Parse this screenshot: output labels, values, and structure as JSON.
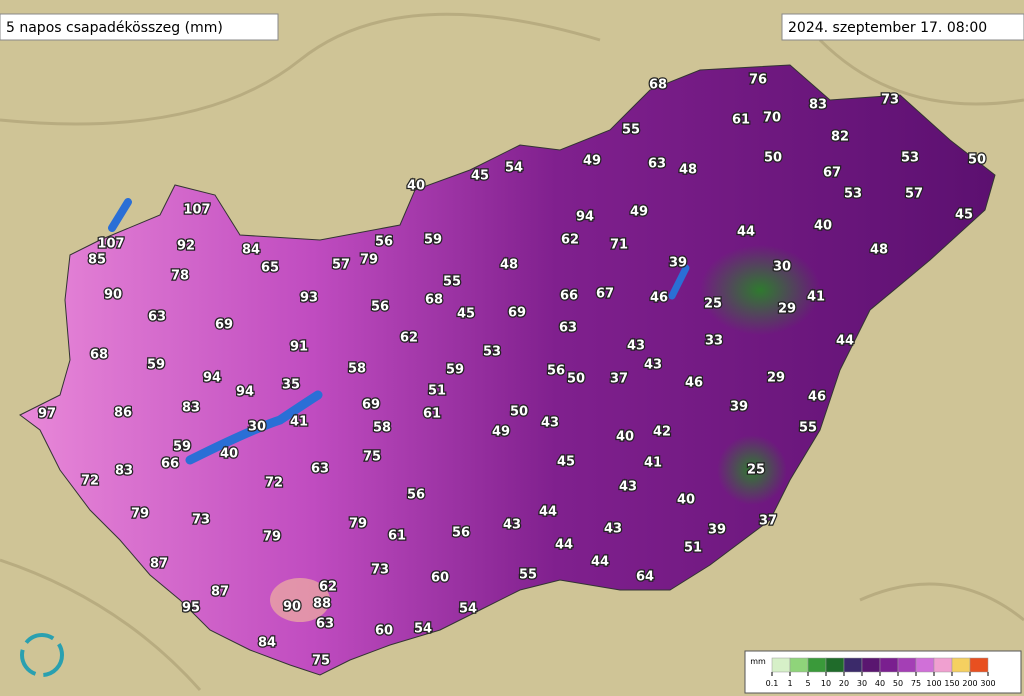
{
  "header": {
    "title": "5 napos csapadékösszeg (mm)",
    "timestamp": "2024. szeptember 17. 08:00"
  },
  "stations": [
    68,
    76,
    83,
    73,
    61,
    70,
    55,
    82,
    49,
    63,
    48,
    50,
    53,
    50,
    67,
    45,
    54,
    40,
    53,
    57,
    107,
    94,
    49,
    45,
    44,
    40,
    107,
    92,
    84,
    56,
    59,
    62,
    71,
    48,
    85,
    57,
    79,
    65,
    48,
    39,
    30,
    78,
    55,
    93,
    68,
    66,
    67,
    46,
    25,
    41,
    29,
    90,
    56,
    45,
    69,
    63,
    69,
    63,
    91,
    62,
    33,
    44,
    53,
    43,
    68,
    59,
    58,
    59,
    56,
    50,
    37,
    43,
    46,
    29,
    94,
    35,
    94,
    51,
    46,
    83,
    86,
    97,
    69,
    61,
    50,
    39,
    41,
    30,
    58,
    43,
    49,
    40,
    42,
    55,
    59,
    40,
    75,
    66,
    45,
    41,
    25,
    63,
    83,
    72,
    72,
    43,
    56,
    40,
    79,
    73,
    44,
    79,
    37,
    43,
    61,
    56,
    43,
    39,
    79,
    44,
    51,
    87,
    44,
    73,
    55,
    64,
    60,
    62,
    87,
    95,
    90,
    88,
    54,
    63,
    60,
    54,
    84,
    75
  ],
  "legend": {
    "unit": "mm",
    "ticks": [
      0.1,
      1,
      5,
      10,
      20,
      30,
      40,
      50,
      75,
      100,
      150,
      200,
      300
    ]
  }
}
